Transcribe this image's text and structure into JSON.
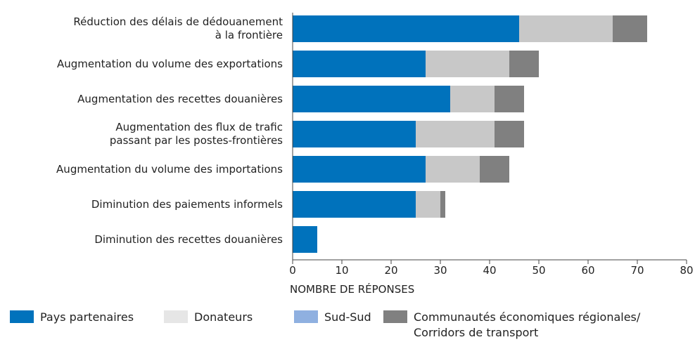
{
  "chart_data": {
    "type": "stacked-bar-horizontal",
    "categories": [
      "Réduction des délais de dédouanement\nà la frontière",
      "Augmentation du volume des exportations",
      "Augmentation des recettes douanières",
      "Augmentation des flux de trafic\npassant par les postes-frontières",
      "Augmentation du volume des importations",
      "Diminution des paiements informels",
      "Diminution des recettes douanières"
    ],
    "series": [
      {
        "name": "Pays partenaires",
        "color": "#0072bc",
        "values": [
          46,
          27,
          32,
          25,
          27,
          25,
          5
        ]
      },
      {
        "name": "Donateurs",
        "color": "#c8c8c8",
        "values": [
          19,
          17,
          9,
          16,
          11,
          5,
          0
        ]
      },
      {
        "name": "Sud-Sud",
        "color": "#8fb0e0",
        "values": [
          0,
          0,
          0,
          0,
          0,
          0,
          0
        ]
      },
      {
        "name": "Communautés économiques régionales/\nCorridors de transport",
        "color": "#808080",
        "values": [
          7,
          6,
          6,
          6,
          6,
          1,
          0
        ]
      }
    ],
    "xlabel": "NOMBRE DE RÉPONSES",
    "xlim": [
      0,
      80
    ],
    "xticks": [
      0,
      10,
      20,
      30,
      40,
      50,
      60,
      70,
      80
    ]
  }
}
